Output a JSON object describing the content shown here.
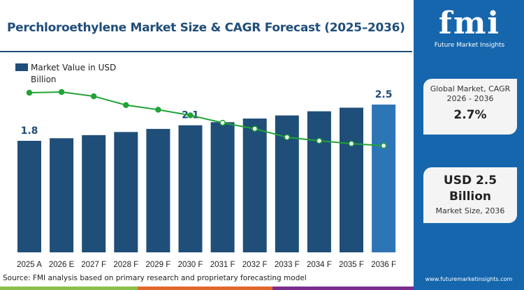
{
  "title": "Perchloroethylene Market Size & CAGR Forecast (2025–2036)",
  "legend": {
    "label": "Market Value in USD Billion",
    "color": "#1f4e79"
  },
  "panel": {
    "logo_big": "fmi",
    "logo_small": "Future Market Insights",
    "cagr_label": "Global Market, CAGR 2026 - 2036",
    "cagr_value": "2.7%",
    "size_value": "USD 2.5 Billion",
    "size_label": "Market Size, 2036",
    "url": "www.futuremarketinsights.com"
  },
  "source": "Source: FMI analysis based on primary research and proprietary forecasting model",
  "colors": {
    "bar": "#1f4e79",
    "bar_last": "#2e75b6",
    "line": "#21a336",
    "panel": "#1566ad"
  },
  "chart_data": {
    "type": "bar",
    "categories": [
      "2025 A",
      "2026 E",
      "2027 F",
      "2028 F",
      "2029 F",
      "2030 F",
      "2031 F",
      "2032 F",
      "2033 F",
      "2034 F",
      "2035 F",
      "2036 F"
    ],
    "series": [
      {
        "name": "Market Value in USD Billion",
        "values": [
          1.8,
          1.85,
          1.91,
          1.97,
          2.03,
          2.1,
          2.16,
          2.23,
          2.29,
          2.37,
          2.44,
          2.5
        ]
      }
    ],
    "data_labels": {
      "0": "1.8",
      "5": "2.1",
      "11": "2.5"
    },
    "growth_line": {
      "type": "line",
      "values": [
        3.3,
        3.32,
        3.2,
        2.95,
        2.82,
        2.66,
        2.45,
        2.28,
        2.04,
        1.94,
        1.86,
        1.8
      ]
    },
    "grid": false,
    "legend_position": "top-left"
  }
}
